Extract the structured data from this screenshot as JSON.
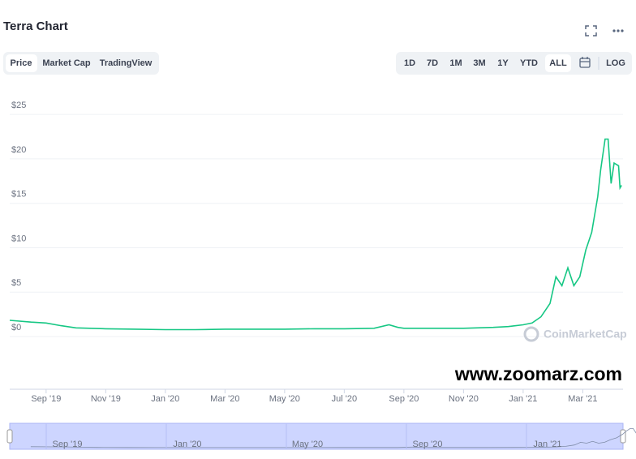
{
  "header": {
    "title": "Terra Chart",
    "tabs": [
      "Price",
      "Market Cap",
      "TradingView"
    ],
    "ranges": [
      "1D",
      "7D",
      "1M",
      "3M",
      "1Y",
      "YTD",
      "ALL"
    ],
    "log": "LOG"
  },
  "chart_data": {
    "type": "line",
    "series": [
      {
        "name": "Price",
        "color": "#16c784",
        "x": [
          -0.22,
          0.5,
          1,
          1.5,
          2,
          3,
          4,
          5,
          6,
          7,
          8,
          9,
          10,
          11,
          12,
          12.5,
          12.8,
          13,
          14,
          15,
          16,
          16.5,
          17,
          17.3,
          17.6,
          17.9,
          18.1,
          18.3,
          18.5,
          18.7,
          18.9,
          19.1,
          19.3,
          19.5,
          19.6,
          19.75,
          19.85,
          19.95,
          20.05,
          20.2,
          20.25,
          20.3
        ],
        "values": [
          1.1,
          0.9,
          0.8,
          0.5,
          0.25,
          0.15,
          0.1,
          0.05,
          0.05,
          0.1,
          0.1,
          0.1,
          0.15,
          0.15,
          0.2,
          0.6,
          0.3,
          0.2,
          0.2,
          0.2,
          0.3,
          0.4,
          0.6,
          0.8,
          1.5,
          3,
          6,
          5,
          7,
          5,
          6,
          9,
          11,
          15,
          18,
          21.5,
          21.5,
          16.5,
          18.8,
          18.5,
          16,
          16.3
        ]
      }
    ],
    "xlim": [
      -0.22,
      20.35
    ],
    "xticks": [
      {
        "value": 1,
        "label": "Sep '19"
      },
      {
        "value": 3,
        "label": "Nov '19"
      },
      {
        "value": 5,
        "label": "Jan '20"
      },
      {
        "value": 7,
        "label": "Mar '20"
      },
      {
        "value": 9,
        "label": "May '20"
      },
      {
        "value": 11,
        "label": "Jul '20"
      },
      {
        "value": 13,
        "label": "Sep '20"
      },
      {
        "value": 15,
        "label": "Nov '20"
      },
      {
        "value": 17,
        "label": "Jan '21"
      },
      {
        "value": 19,
        "label": "Mar '21"
      }
    ],
    "ylim": [
      -6.66,
      26.2
    ],
    "yticks": [
      {
        "value": 0,
        "label": "$0"
      },
      {
        "value": 5,
        "label": "$5"
      },
      {
        "value": 10,
        "label": "$10"
      },
      {
        "value": 15,
        "label": "$15"
      },
      {
        "value": 20,
        "label": "$20"
      },
      {
        "value": 25,
        "label": "$25"
      }
    ],
    "grid": true,
    "navigator_ticks": [
      {
        "value": 1,
        "label": "Sep '19"
      },
      {
        "value": 5,
        "label": "Jan '20"
      },
      {
        "value": 9,
        "label": "May '20"
      },
      {
        "value": 13,
        "label": "Sep '20"
      },
      {
        "value": 17,
        "label": "Jan '21"
      }
    ],
    "watermark": "CoinMarketCap",
    "annotation": "www.zoomarz.com"
  }
}
